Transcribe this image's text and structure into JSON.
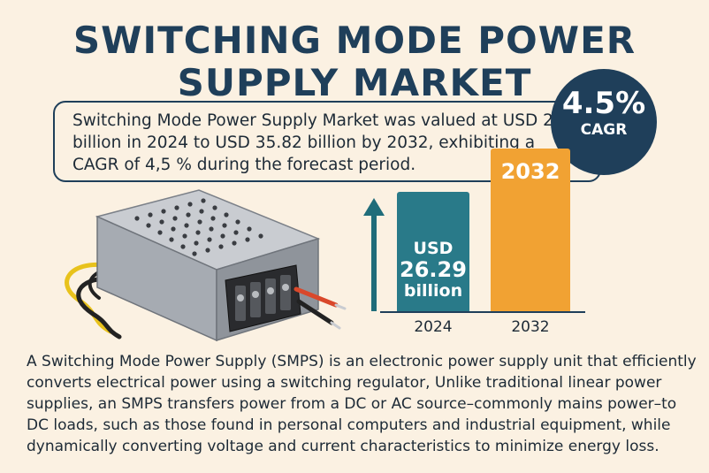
{
  "header": {
    "title_line1": "SWITCHING MODE POWER",
    "title_line2": "SUPPLY MARKET"
  },
  "summary": {
    "line1": "Switching Mode Power Supply Market was valued at USD 26,29",
    "line2": "billion in 2024 to USD 35.82 billion by 2032, exhibiting a",
    "line3": "CAGR of 4,5 % during the forecast period."
  },
  "cagr": {
    "value": "4.5%",
    "label": "CAGR"
  },
  "chart_data": {
    "type": "bar",
    "categories": [
      "2024",
      "2032"
    ],
    "values": [
      26.29,
      35.82
    ],
    "bar_labels": {
      "b2024_line1": "USD",
      "b2024_line2": "26.29",
      "b2024_line3": "billion",
      "b2032": "2032"
    },
    "colors": [
      "#297a89",
      "#f1a233"
    ]
  },
  "illustration": {
    "subject": "power-supply-unit-icon",
    "wire_colors": [
      "#e8c21c",
      "#222222",
      "#d9482b"
    ]
  },
  "description": {
    "line1": "A Switching Mode Power Supply (SMPS) is an electronic power supply unit that efficiently",
    "line2": "converts electrical power using a switching regulator, Unlike traditional linear power",
    "line3": "supplies, an SMPS transfers power from a DC or AC source–commonly mains power–to",
    "line4": "DC loads, such as those found in personal computers and industrial equipment, while",
    "line5": "dynamically converting voltage and current characteristics to minimize energy loss."
  },
  "colors": {
    "navy": "#1f3f5a",
    "teal": "#297a89",
    "orange": "#f1a233",
    "background": "#fbf1e2"
  }
}
